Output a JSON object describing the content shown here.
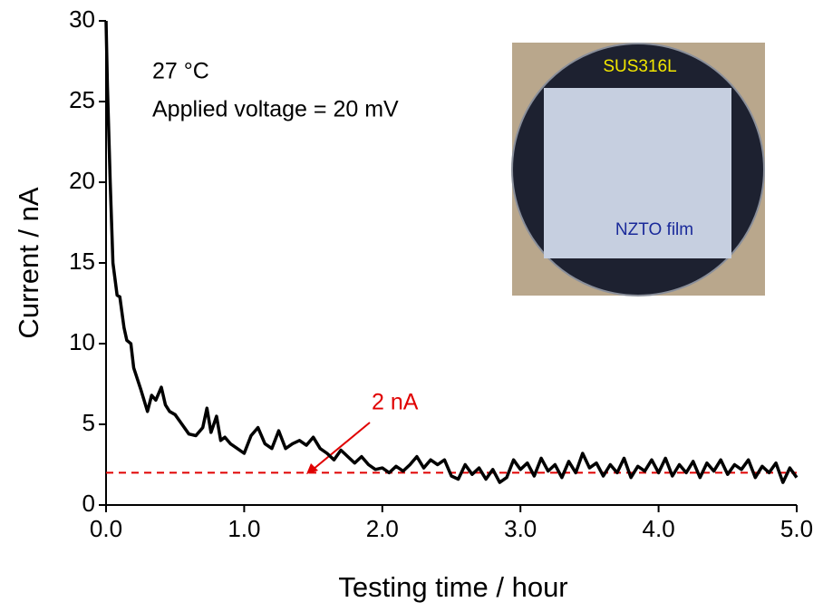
{
  "chart_data": {
    "type": "line",
    "x_label": "Testing time / hour",
    "y_label": "Current / nA",
    "annotations": [
      "27 °C",
      "Applied voltage = 20 mV",
      "2 nA"
    ],
    "inset_labels": [
      "SUS316L",
      "NZTO film"
    ],
    "color": "#000000",
    "reference_line": {
      "value": 2,
      "color": "#e00000"
    },
    "x": [
      0,
      0.01,
      0.03,
      0.05,
      0.08,
      0.1,
      0.13,
      0.15,
      0.18,
      0.2,
      0.25,
      0.3,
      0.33,
      0.36,
      0.4,
      0.43,
      0.46,
      0.5,
      0.55,
      0.6,
      0.65,
      0.7,
      0.73,
      0.76,
      0.8,
      0.83,
      0.86,
      0.9,
      0.95,
      1.0,
      1.05,
      1.1,
      1.15,
      1.2,
      1.25,
      1.3,
      1.35,
      1.4,
      1.45,
      1.5,
      1.55,
      1.6,
      1.65,
      1.7,
      1.75,
      1.8,
      1.85,
      1.9,
      1.95,
      2.0,
      2.05,
      2.1,
      2.15,
      2.2,
      2.25,
      2.3,
      2.35,
      2.4,
      2.45,
      2.5,
      2.55,
      2.6,
      2.65,
      2.7,
      2.75,
      2.8,
      2.85,
      2.9,
      2.95,
      3.0,
      3.05,
      3.1,
      3.15,
      3.2,
      3.25,
      3.3,
      3.35,
      3.4,
      3.45,
      3.5,
      3.55,
      3.6,
      3.65,
      3.7,
      3.75,
      3.8,
      3.85,
      3.9,
      3.95,
      4.0,
      4.05,
      4.1,
      4.15,
      4.2,
      4.25,
      4.3,
      4.35,
      4.4,
      4.45,
      4.5,
      4.55,
      4.6,
      4.65,
      4.7,
      4.75,
      4.8,
      4.85,
      4.9,
      4.95,
      5.0
    ],
    "values": [
      30,
      26,
      20,
      15,
      13,
      12.9,
      11,
      10.2,
      10,
      8.5,
      7.2,
      5.8,
      6.8,
      6.5,
      7.3,
      6.2,
      5.8,
      5.6,
      5,
      4.4,
      4.3,
      4.8,
      6,
      4.5,
      5.5,
      4,
      4.2,
      3.8,
      3.5,
      3.2,
      4.3,
      4.8,
      3.8,
      3.5,
      4.6,
      3.5,
      3.8,
      4,
      3.7,
      4.2,
      3.5,
      3.2,
      2.8,
      3.4,
      3,
      2.6,
      3,
      2.5,
      2.2,
      2.3,
      2,
      2.4,
      2.1,
      2.5,
      3,
      2.3,
      2.8,
      2.5,
      2.8,
      1.8,
      1.6,
      2.5,
      1.9,
      2.3,
      1.6,
      2.2,
      1.4,
      1.7,
      2.8,
      2.2,
      2.6,
      1.8,
      2.9,
      2.1,
      2.5,
      1.7,
      2.7,
      2,
      3.2,
      2.3,
      2.6,
      1.8,
      2.5,
      2,
      2.9,
      1.7,
      2.4,
      2.1,
      2.8,
      2,
      2.9,
      1.8,
      2.5,
      2,
      2.7,
      1.7,
      2.6,
      2.1,
      2.8,
      1.9,
      2.5,
      2.2,
      2.8,
      1.7,
      2.4,
      2,
      2.6,
      1.4,
      2.3,
      1.7
    ],
    "xlim": [
      0,
      5
    ],
    "ylim": [
      0,
      30
    ],
    "xticks": [
      {
        "value": 0,
        "label": "0.0"
      },
      {
        "value": 1,
        "label": "1.0"
      },
      {
        "value": 2,
        "label": "2.0"
      },
      {
        "value": 3,
        "label": "3.0"
      },
      {
        "value": 4,
        "label": "4.0"
      },
      {
        "value": 5,
        "label": "5.0"
      }
    ],
    "yticks": [
      0,
      5,
      10,
      15,
      20,
      25,
      30
    ],
    "grid": false
  }
}
